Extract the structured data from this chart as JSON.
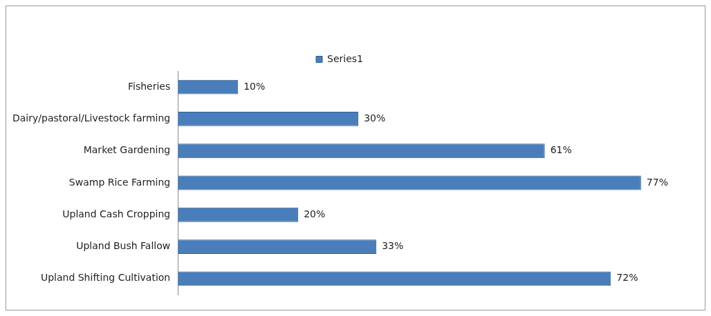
{
  "chart_data": {
    "type": "bar",
    "orientation": "horizontal",
    "categories": [
      "Fisheries",
      "Dairy/pastoral/Livestock farming",
      "Market Gardening",
      "Swamp Rice Farming",
      "Upland Cash Cropping",
      "Upland Bush Fallow",
      "Upland Shifting Cultivation"
    ],
    "series": [
      {
        "name": "Series1",
        "color": "#4a7ebb",
        "values": [
          10,
          30,
          61,
          77,
          20,
          33,
          72
        ],
        "value_labels": [
          "10%",
          "30%",
          "61%",
          "77%",
          "20%",
          "33%",
          "72%"
        ]
      }
    ],
    "legend": "top",
    "grid": false,
    "tick_labels": "y"
  }
}
